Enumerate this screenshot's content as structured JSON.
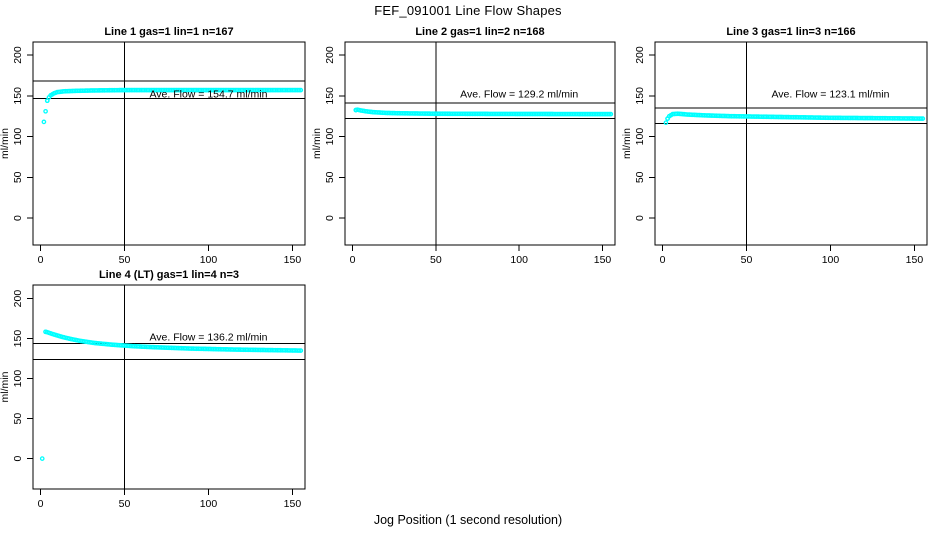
{
  "header": {
    "title": "FEF_091001  Line Flow Shapes"
  },
  "chart_data": {
    "type": "scatter",
    "title": "FEF_091001  Line Flow Shapes",
    "xlabel": "Jog Position (1 second resolution)",
    "marker": "open-circle",
    "marker_color": "#00ffff",
    "frame_color": "#000000",
    "x_ticks": [
      0,
      50,
      100,
      150
    ],
    "y_ticks": [
      0,
      50,
      100,
      150,
      200
    ],
    "xlim": [
      -4.5,
      157.5
    ],
    "ylim": [
      -33,
      216
    ],
    "grid": "off",
    "legend": "none",
    "marker_step_x": 1,
    "plots": [
      {
        "title": "Line 1 gas=1 lin=1 n=167",
        "ylabel": "ml/min",
        "n": 167,
        "ave_flow": 154.7,
        "ave_flow_label": "Ave. Flow =  154.7  ml/min",
        "label_pos": [
          100,
          152
        ],
        "vline_x": 50,
        "hline_upper": 168,
        "hline_lower": 147,
        "outlier_points": [
          [
            2,
            118
          ],
          [
            3,
            131
          ]
        ],
        "curve": [
          [
            4,
            144
          ],
          [
            5,
            148
          ],
          [
            6,
            150.5
          ],
          [
            8,
            153
          ],
          [
            10,
            154.5
          ],
          [
            14,
            155.5
          ],
          [
            20,
            156
          ],
          [
            30,
            156.5
          ],
          [
            50,
            157
          ],
          [
            155,
            157
          ]
        ]
      },
      {
        "title": "Line 2 gas=1 lin=2 n=168",
        "ylabel": "ml/min",
        "n": 168,
        "ave_flow": 129.2,
        "ave_flow_label": "Ave. Flow =  129.2  ml/min",
        "label_pos": [
          100,
          152
        ],
        "vline_x": 50,
        "hline_upper": 141,
        "hline_lower": 122,
        "outlier_points": [],
        "curve": [
          [
            2,
            132.5
          ],
          [
            3,
            133
          ],
          [
            5,
            132
          ],
          [
            8,
            131
          ],
          [
            12,
            130
          ],
          [
            20,
            129
          ],
          [
            30,
            128.5
          ],
          [
            50,
            128
          ],
          [
            80,
            127.8
          ],
          [
            155,
            127.5
          ]
        ]
      },
      {
        "title": "Line 3 gas=1 lin=3 n=166",
        "ylabel": "ml/min",
        "n": 166,
        "ave_flow": 123.1,
        "ave_flow_label": "Ave. Flow =  123.1  ml/min",
        "label_pos": [
          100,
          152
        ],
        "vline_x": 50,
        "hline_upper": 135,
        "hline_lower": 116,
        "outlier_points": [
          [
            2,
            117
          ]
        ],
        "curve": [
          [
            3,
            122
          ],
          [
            4,
            125
          ],
          [
            6,
            127.5
          ],
          [
            9,
            128
          ],
          [
            15,
            127
          ],
          [
            25,
            126
          ],
          [
            40,
            125
          ],
          [
            70,
            124
          ],
          [
            100,
            123
          ],
          [
            130,
            122.5
          ],
          [
            155,
            122
          ]
        ]
      },
      {
        "title": "Line 4 (LT) gas=1 lin=4 n=3",
        "ylabel": "ml/min",
        "n": 3,
        "ave_flow": 136.2,
        "ave_flow_label": "Ave. Flow =  136.2  ml/min",
        "label_pos": [
          100,
          152
        ],
        "vline_x": 50,
        "hline_upper": 144,
        "hline_lower": 124,
        "outlier_points": [
          [
            1,
            0
          ]
        ],
        "curve": [
          [
            3,
            158.5
          ],
          [
            4,
            158
          ],
          [
            6,
            156.5
          ],
          [
            9,
            154.5
          ],
          [
            13,
            152
          ],
          [
            18,
            149.5
          ],
          [
            24,
            147
          ],
          [
            32,
            144.5
          ],
          [
            42,
            142.5
          ],
          [
            55,
            140.5
          ],
          [
            70,
            139
          ],
          [
            90,
            137.5
          ],
          [
            115,
            136.3
          ],
          [
            140,
            135.5
          ],
          [
            155,
            135
          ]
        ]
      }
    ]
  }
}
